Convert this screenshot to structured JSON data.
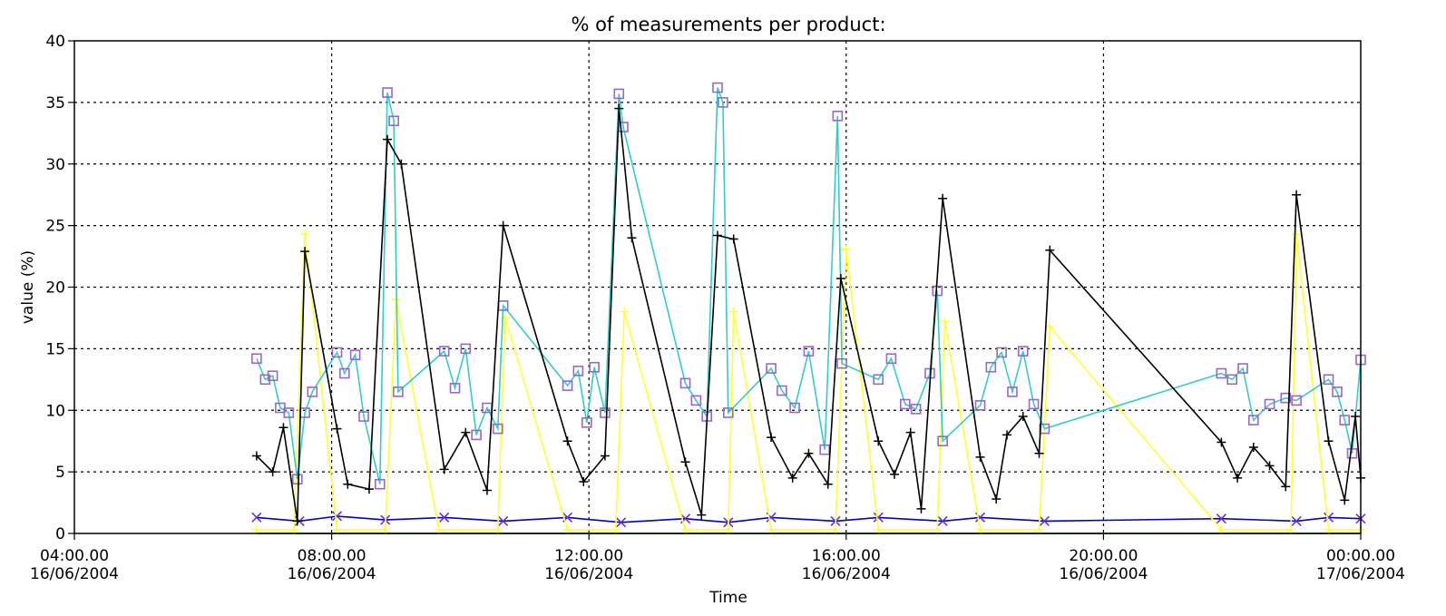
{
  "chart_data": {
    "type": "line",
    "title": "% of measurements per product:",
    "xlabel": "Time",
    "ylabel": "value (%)",
    "xlim": [
      "2004-06-16 04:00",
      "2004-06-17 00:00"
    ],
    "ylim": [
      0,
      40
    ],
    "y_ticks": [
      "0",
      "5",
      "10",
      "15",
      "20",
      "25",
      "30",
      "35",
      "40"
    ],
    "x_ticks": [
      {
        "t": "2004-06-16 04:00",
        "line1": "04:00.00",
        "line2": "16/06/2004"
      },
      {
        "t": "2004-06-16 08:00",
        "line1": "08:00.00",
        "line2": "16/06/2004"
      },
      {
        "t": "2004-06-16 12:00",
        "line1": "12:00.00",
        "line2": "16/06/2004"
      },
      {
        "t": "2004-06-16 16:00",
        "line1": "16:00.00",
        "line2": "16/06/2004"
      },
      {
        "t": "2004-06-16 20:00",
        "line1": "20:00.00",
        "line2": "16/06/2004"
      },
      {
        "t": "2004-06-17 00:00",
        "line1": "00:00.00",
        "line2": "17/06/2004"
      }
    ],
    "grid": true,
    "legend": "none",
    "series": [
      {
        "color": "#000000",
        "marker": "plus",
        "points": [
          [
            "2004-06-16 06:50",
            6.3
          ],
          [
            "2004-06-16 07:05",
            5.0
          ],
          [
            "2004-06-16 07:15",
            8.6
          ],
          [
            "2004-06-16 07:28",
            1.0
          ],
          [
            "2004-06-16 07:35",
            22.9
          ],
          [
            "2004-06-16 08:05",
            8.5
          ],
          [
            "2004-06-16 08:15",
            4.0
          ],
          [
            "2004-06-16 08:35",
            3.6
          ],
          [
            "2004-06-16 08:52",
            32.0
          ],
          [
            "2004-06-16 09:05",
            30.0
          ],
          [
            "2004-06-16 09:45",
            5.2
          ],
          [
            "2004-06-16 10:05",
            8.2
          ],
          [
            "2004-06-16 10:25",
            3.5
          ],
          [
            "2004-06-16 10:40",
            25.0
          ],
          [
            "2004-06-16 11:40",
            7.5
          ],
          [
            "2004-06-16 11:55",
            4.2
          ],
          [
            "2004-06-16 12:15",
            6.3
          ],
          [
            "2004-06-16 12:28",
            34.5
          ],
          [
            "2004-06-16 12:40",
            24.0
          ],
          [
            "2004-06-16 13:30",
            5.8
          ],
          [
            "2004-06-16 13:45",
            1.5
          ],
          [
            "2004-06-16 14:00",
            24.2
          ],
          [
            "2004-06-16 14:15",
            23.9
          ],
          [
            "2004-06-16 14:50",
            7.8
          ],
          [
            "2004-06-16 15:10",
            4.5
          ],
          [
            "2004-06-16 15:25",
            6.5
          ],
          [
            "2004-06-16 15:43",
            4.0
          ],
          [
            "2004-06-16 15:55",
            20.7
          ],
          [
            "2004-06-16 16:30",
            7.5
          ],
          [
            "2004-06-16 16:45",
            4.8
          ],
          [
            "2004-06-16 17:00",
            8.2
          ],
          [
            "2004-06-16 17:10",
            2.0
          ],
          [
            "2004-06-16 17:30",
            27.2
          ],
          [
            "2004-06-16 18:05",
            6.2
          ],
          [
            "2004-06-16 18:20",
            2.8
          ],
          [
            "2004-06-16 18:30",
            8.0
          ],
          [
            "2004-06-16 18:45",
            9.5
          ],
          [
            "2004-06-16 19:00",
            6.5
          ],
          [
            "2004-06-16 19:10",
            23.0
          ],
          [
            "2004-06-16 21:50",
            7.4
          ],
          [
            "2004-06-16 22:05",
            4.5
          ],
          [
            "2004-06-16 22:20",
            7.0
          ],
          [
            "2004-06-16 22:35",
            5.5
          ],
          [
            "2004-06-16 22:50",
            3.8
          ],
          [
            "2004-06-16 23:00",
            27.5
          ],
          [
            "2004-06-16 23:30",
            7.5
          ],
          [
            "2004-06-16 23:45",
            2.7
          ],
          [
            "2004-06-16 23:55",
            9.5
          ],
          [
            "2004-06-17 00:00",
            4.5
          ]
        ]
      },
      {
        "color": "#33cccc",
        "marker": "square",
        "marker_color": "#9966cc",
        "points": [
          [
            "2004-06-16 06:50",
            14.2
          ],
          [
            "2004-06-16 06:58",
            12.5
          ],
          [
            "2004-06-16 07:05",
            12.8
          ],
          [
            "2004-06-16 07:12",
            10.2
          ],
          [
            "2004-06-16 07:20",
            9.8
          ],
          [
            "2004-06-16 07:28",
            4.4
          ],
          [
            "2004-06-16 07:35",
            9.8
          ],
          [
            "2004-06-16 07:42",
            11.5
          ],
          [
            "2004-06-16 08:05",
            14.7
          ],
          [
            "2004-06-16 08:12",
            13.0
          ],
          [
            "2004-06-16 08:22",
            14.5
          ],
          [
            "2004-06-16 08:30",
            9.5
          ],
          [
            "2004-06-16 08:45",
            4.0
          ],
          [
            "2004-06-16 08:52",
            35.8
          ],
          [
            "2004-06-16 08:58",
            33.5
          ],
          [
            "2004-06-16 09:02",
            11.5
          ],
          [
            "2004-06-16 09:45",
            14.8
          ],
          [
            "2004-06-16 09:55",
            11.8
          ],
          [
            "2004-06-16 10:05",
            15.0
          ],
          [
            "2004-06-16 10:15",
            8.0
          ],
          [
            "2004-06-16 10:25",
            10.2
          ],
          [
            "2004-06-16 10:35",
            8.5
          ],
          [
            "2004-06-16 10:40",
            18.5
          ],
          [
            "2004-06-16 11:40",
            12.0
          ],
          [
            "2004-06-16 11:50",
            13.2
          ],
          [
            "2004-06-16 11:58",
            9.0
          ],
          [
            "2004-06-16 12:05",
            13.5
          ],
          [
            "2004-06-16 12:15",
            9.8
          ],
          [
            "2004-06-16 12:28",
            35.7
          ],
          [
            "2004-06-16 12:32",
            33.0
          ],
          [
            "2004-06-16 13:30",
            12.2
          ],
          [
            "2004-06-16 13:40",
            10.8
          ],
          [
            "2004-06-16 13:50",
            9.5
          ],
          [
            "2004-06-16 14:00",
            36.2
          ],
          [
            "2004-06-16 14:05",
            35.0
          ],
          [
            "2004-06-16 14:10",
            9.8
          ],
          [
            "2004-06-16 14:50",
            13.4
          ],
          [
            "2004-06-16 15:00",
            11.6
          ],
          [
            "2004-06-16 15:12",
            10.2
          ],
          [
            "2004-06-16 15:25",
            14.8
          ],
          [
            "2004-06-16 15:40",
            6.8
          ],
          [
            "2004-06-16 15:52",
            33.9
          ],
          [
            "2004-06-16 15:56",
            13.8
          ],
          [
            "2004-06-16 16:30",
            12.5
          ],
          [
            "2004-06-16 16:42",
            14.2
          ],
          [
            "2004-06-16 16:55",
            10.5
          ],
          [
            "2004-06-16 17:05",
            10.1
          ],
          [
            "2004-06-16 17:18",
            13.0
          ],
          [
            "2004-06-16 17:25",
            19.7
          ],
          [
            "2004-06-16 17:30",
            7.5
          ],
          [
            "2004-06-16 18:05",
            10.4
          ],
          [
            "2004-06-16 18:15",
            13.5
          ],
          [
            "2004-06-16 18:25",
            14.7
          ],
          [
            "2004-06-16 18:35",
            11.5
          ],
          [
            "2004-06-16 18:45",
            14.8
          ],
          [
            "2004-06-16 18:55",
            10.5
          ],
          [
            "2004-06-16 19:05",
            8.5
          ],
          [
            "2004-06-16 21:50",
            13.0
          ],
          [
            "2004-06-16 22:00",
            12.5
          ],
          [
            "2004-06-16 22:10",
            13.4
          ],
          [
            "2004-06-16 22:20",
            9.2
          ],
          [
            "2004-06-16 22:35",
            10.5
          ],
          [
            "2004-06-16 22:50",
            11.0
          ],
          [
            "2004-06-16 23:00",
            10.8
          ],
          [
            "2004-06-16 23:30",
            12.5
          ],
          [
            "2004-06-16 23:38",
            11.5
          ],
          [
            "2004-06-16 23:45",
            9.2
          ],
          [
            "2004-06-16 23:52",
            6.5
          ],
          [
            "2004-06-17 00:00",
            14.1
          ]
        ]
      },
      {
        "color": "#ffff33",
        "marker": "plus",
        "points": [
          [
            "2004-06-16 06:50",
            0.3
          ],
          [
            "2004-06-16 07:25",
            0.3
          ],
          [
            "2004-06-16 07:35",
            24.3
          ],
          [
            "2004-06-16 08:05",
            0.3
          ],
          [
            "2004-06-16 08:50",
            0.3
          ],
          [
            "2004-06-16 09:00",
            19.0
          ],
          [
            "2004-06-16 09:40",
            0.3
          ],
          [
            "2004-06-16 10:35",
            0.3
          ],
          [
            "2004-06-16 10:42",
            17.5
          ],
          [
            "2004-06-16 11:40",
            0.3
          ],
          [
            "2004-06-16 12:25",
            0.3
          ],
          [
            "2004-06-16 12:33",
            18.0
          ],
          [
            "2004-06-16 13:30",
            0.3
          ],
          [
            "2004-06-16 14:10",
            0.3
          ],
          [
            "2004-06-16 14:15",
            18.0
          ],
          [
            "2004-06-16 14:50",
            0.3
          ],
          [
            "2004-06-16 15:50",
            0.3
          ],
          [
            "2004-06-16 16:00",
            23.1
          ],
          [
            "2004-06-16 16:30",
            0.3
          ],
          [
            "2004-06-16 17:25",
            0.3
          ],
          [
            "2004-06-16 17:32",
            17.2
          ],
          [
            "2004-06-16 18:05",
            0.3
          ],
          [
            "2004-06-16 19:00",
            0.3
          ],
          [
            "2004-06-16 19:10",
            16.8
          ],
          [
            "2004-06-16 21:50",
            0.3
          ],
          [
            "2004-06-16 22:55",
            0.3
          ],
          [
            "2004-06-16 23:00",
            24.3
          ],
          [
            "2004-06-16 23:30",
            0.3
          ],
          [
            "2004-06-17 00:00",
            0.3
          ]
        ]
      },
      {
        "color": "#0000cc",
        "marker": "cross",
        "marker_color": "#6633cc",
        "points": [
          [
            "2004-06-16 06:50",
            1.3
          ],
          [
            "2004-06-16 07:30",
            1.0
          ],
          [
            "2004-06-16 08:05",
            1.4
          ],
          [
            "2004-06-16 08:50",
            1.1
          ],
          [
            "2004-06-16 09:45",
            1.3
          ],
          [
            "2004-06-16 10:40",
            1.0
          ],
          [
            "2004-06-16 11:40",
            1.3
          ],
          [
            "2004-06-16 12:30",
            0.9
          ],
          [
            "2004-06-16 13:30",
            1.2
          ],
          [
            "2004-06-16 14:10",
            0.9
          ],
          [
            "2004-06-16 14:50",
            1.3
          ],
          [
            "2004-06-16 15:50",
            1.0
          ],
          [
            "2004-06-16 16:30",
            1.3
          ],
          [
            "2004-06-16 17:30",
            1.0
          ],
          [
            "2004-06-16 18:05",
            1.3
          ],
          [
            "2004-06-16 19:05",
            1.0
          ],
          [
            "2004-06-16 21:50",
            1.2
          ],
          [
            "2004-06-16 23:00",
            1.0
          ],
          [
            "2004-06-16 23:30",
            1.3
          ],
          [
            "2004-06-17 00:00",
            1.2
          ]
        ]
      },
      {
        "color": "#33cc33",
        "marker": "none",
        "points": [
          [
            "2004-06-16 06:50",
            0.0
          ],
          [
            "2004-06-17 00:00",
            0.0
          ]
        ]
      }
    ]
  }
}
